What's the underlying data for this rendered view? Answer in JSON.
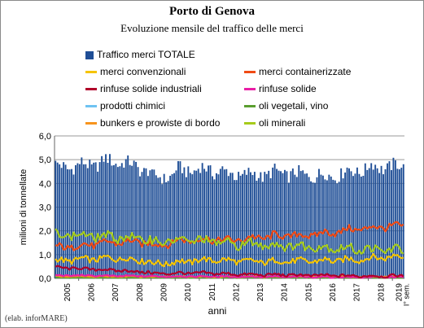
{
  "header": {
    "title": "Porto di Genova",
    "subtitle": "Evoluzione mensile del traffico delle merci"
  },
  "credit": "(elab. inforMARE)",
  "chart_data": {
    "type": "bar",
    "ylabel": "milioni di tonnellate",
    "xlabel": "anni",
    "ylim": [
      0,
      6
    ],
    "yticks": [
      "0,0",
      "1,0",
      "2,0",
      "3,0",
      "4,0",
      "5,0",
      "6,0"
    ],
    "grid": true,
    "legend_position": "top",
    "year_labels": [
      "2005",
      "2006",
      "2007",
      "2008",
      "2009",
      "2010",
      "2011",
      "2012",
      "2013",
      "2014",
      "2015",
      "2016",
      "2017",
      "2018",
      "2019"
    ],
    "last_period_label": "I° sem.",
    "series": [
      {
        "name": "Traffico merci TOTALE",
        "kind": "bar",
        "color": "#1f4e96",
        "annual_levels": [
          4.7,
          4.75,
          4.95,
          4.8,
          4.2,
          4.55,
          4.6,
          4.4,
          4.35,
          4.45,
          4.35,
          4.3,
          4.5,
          4.7,
          4.7
        ]
      },
      {
        "name": "merci convenzionali",
        "kind": "line",
        "color": "#f5c400",
        "annual_levels": [
          0.75,
          0.8,
          0.85,
          0.82,
          0.62,
          0.7,
          0.78,
          0.75,
          0.7,
          0.72,
          0.72,
          0.75,
          0.78,
          0.85,
          0.95
        ]
      },
      {
        "name": "merci containerizzate",
        "kind": "line",
        "color": "#f04a14",
        "annual_levels": [
          1.3,
          1.4,
          1.5,
          1.55,
          1.4,
          1.6,
          1.65,
          1.6,
          1.7,
          1.8,
          1.8,
          1.9,
          2.05,
          2.15,
          2.2
        ]
      },
      {
        "name": "rinfuse solide industriali",
        "kind": "line",
        "color": "#b0002a",
        "annual_levels": [
          0.45,
          0.4,
          0.35,
          0.3,
          0.2,
          0.22,
          0.22,
          0.18,
          0.15,
          0.15,
          0.13,
          0.12,
          0.1,
          0.1,
          0.1
        ]
      },
      {
        "name": "rinfuse solide",
        "kind": "line",
        "color": "#e91ea6",
        "annual_levels": [
          0.12,
          0.12,
          0.1,
          0.1,
          0.08,
          0.08,
          0.08,
          0.07,
          0.07,
          0.06,
          0.06,
          0.06,
          0.05,
          0.05,
          0.05
        ]
      },
      {
        "name": "prodotti chimici",
        "kind": "line",
        "color": "#6fc3f2",
        "annual_levels": [
          0.05,
          0.05,
          0.05,
          0.05,
          0.04,
          0.04,
          0.04,
          0.04,
          0.04,
          0.04,
          0.04,
          0.04,
          0.04,
          0.04,
          0.04
        ]
      },
      {
        "name": "oli vegetali, vino",
        "kind": "line",
        "color": "#5a9e2f",
        "annual_levels": [
          0.03,
          0.03,
          0.03,
          0.03,
          0.03,
          0.03,
          0.03,
          0.03,
          0.03,
          0.03,
          0.03,
          0.03,
          0.03,
          0.03,
          0.03
        ]
      },
      {
        "name": "bunkers e prowiste di bordo",
        "kind": "line",
        "color": "#f7941d",
        "annual_levels": [
          0.08,
          0.08,
          0.08,
          0.08,
          0.07,
          0.07,
          0.07,
          0.07,
          0.07,
          0.07,
          0.07,
          0.07,
          0.07,
          0.07,
          0.07
        ]
      },
      {
        "name": "oli minerali",
        "kind": "line",
        "color": "#a6cb1a",
        "annual_levels": [
          1.85,
          1.8,
          1.75,
          1.7,
          1.55,
          1.6,
          1.6,
          1.45,
          1.45,
          1.4,
          1.35,
          1.3,
          1.25,
          1.2,
          1.2
        ]
      }
    ]
  }
}
